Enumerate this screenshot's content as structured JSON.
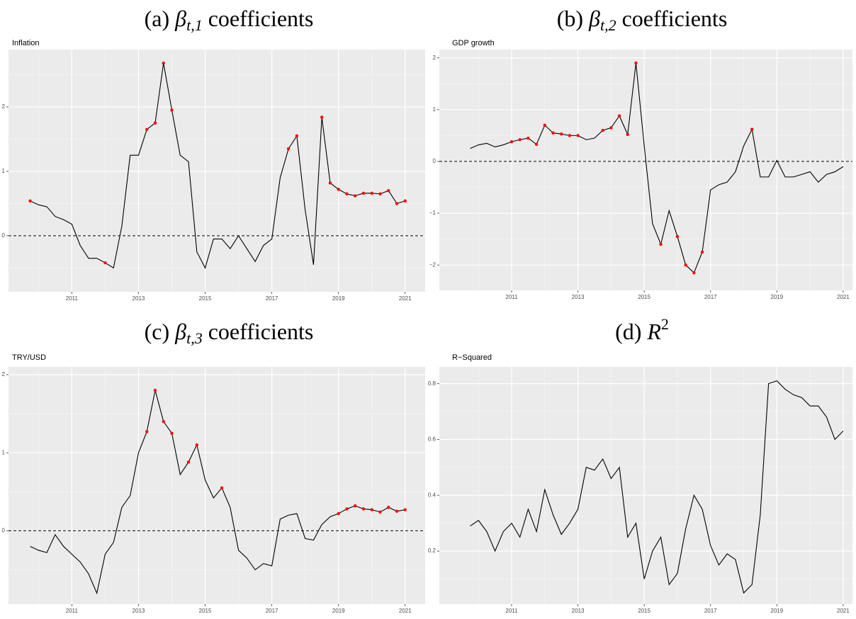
{
  "chart_data": [
    {
      "type": "line",
      "title": "(a)",
      "title_symbol": "β",
      "title_subscript": "t,1",
      "title_suffix": "coefficients",
      "subtitle": "Inflation",
      "x": [
        2009.75,
        2010,
        2010.25,
        2010.5,
        2010.75,
        2011,
        2011.25,
        2011.5,
        2011.75,
        2012,
        2012.25,
        2012.5,
        2012.75,
        2013,
        2013.25,
        2013.5,
        2013.75,
        2014,
        2014.25,
        2014.5,
        2014.75,
        2015,
        2015.25,
        2015.5,
        2015.75,
        2016,
        2016.25,
        2016.5,
        2016.75,
        2017,
        2017.25,
        2017.5,
        2017.75,
        2018,
        2018.25,
        2018.5,
        2018.75,
        2019,
        2019.25,
        2019.5,
        2019.75,
        2020,
        2020.25,
        2020.5,
        2020.75,
        2021
      ],
      "series": [
        {
          "color": "#000000",
          "values": [
            0.54,
            0.48,
            0.45,
            0.3,
            0.25,
            0.18,
            -0.15,
            -0.35,
            -0.35,
            -0.42,
            -0.5,
            0.15,
            1.25,
            1.25,
            1.65,
            1.75,
            2.68,
            1.95,
            1.25,
            1.15,
            -0.25,
            -0.5,
            -0.05,
            -0.05,
            -0.2,
            0.0,
            -0.2,
            -0.4,
            -0.15,
            -0.05,
            0.9,
            1.35,
            1.55,
            0.4,
            -0.45,
            1.84,
            0.82,
            0.72,
            0.65,
            0.62,
            0.66,
            0.66,
            0.65,
            0.7,
            0.5,
            0.54
          ]
        }
      ],
      "highlight": {
        "color": "#ff0000",
        "values": [
          0.54,
          null,
          null,
          null,
          null,
          null,
          null,
          null,
          null,
          -0.42,
          null,
          null,
          null,
          null,
          1.65,
          1.75,
          2.68,
          1.95,
          null,
          null,
          null,
          null,
          null,
          null,
          null,
          null,
          null,
          null,
          null,
          null,
          null,
          1.35,
          1.55,
          null,
          null,
          1.84,
          0.82,
          0.72,
          0.65,
          0.62,
          0.66,
          0.66,
          0.65,
          0.7,
          0.5,
          0.54
        ]
      },
      "xlim": [
        2009.1,
        2021.6
      ],
      "xticks": [
        2011,
        2013,
        2015,
        2017,
        2019,
        2021
      ],
      "xminorticks": [
        2010,
        2012,
        2014,
        2016,
        2018,
        2020
      ],
      "ylim": [
        -0.87,
        2.89
      ],
      "yticks": [
        0,
        1,
        2
      ],
      "yminorticks": [
        -0.5,
        0.5,
        1.5,
        2.5
      ],
      "hline": 0,
      "grid": true
    },
    {
      "type": "line",
      "title": "(b)",
      "title_symbol": "β",
      "title_subscript": "t,2",
      "title_suffix": "coefficients",
      "subtitle": "GDP growth",
      "x": [
        2009.75,
        2010,
        2010.25,
        2010.5,
        2010.75,
        2011,
        2011.25,
        2011.5,
        2011.75,
        2012,
        2012.25,
        2012.5,
        2012.75,
        2013,
        2013.25,
        2013.5,
        2013.75,
        2014,
        2014.25,
        2014.5,
        2014.75,
        2015,
        2015.25,
        2015.5,
        2015.75,
        2016,
        2016.25,
        2016.5,
        2016.75,
        2017,
        2017.25,
        2017.5,
        2017.75,
        2018,
        2018.25,
        2018.5,
        2018.75,
        2019,
        2019.25,
        2019.5,
        2019.75,
        2020,
        2020.25,
        2020.5,
        2020.75,
        2021
      ],
      "series": [
        {
          "color": "#000000",
          "values": [
            0.25,
            0.32,
            0.35,
            0.28,
            0.32,
            0.38,
            0.42,
            0.45,
            0.33,
            0.7,
            0.55,
            0.53,
            0.5,
            0.5,
            0.42,
            0.45,
            0.6,
            0.65,
            0.88,
            0.52,
            1.9,
            0.3,
            -1.2,
            -1.6,
            -0.95,
            -1.45,
            -2.0,
            -2.15,
            -1.75,
            -0.55,
            -0.45,
            -0.4,
            -0.2,
            0.3,
            0.62,
            -0.3,
            -0.3,
            0.02,
            -0.3,
            -0.3,
            -0.25,
            -0.2,
            -0.4,
            -0.25,
            -0.2,
            -0.1
          ]
        }
      ],
      "highlight": {
        "color": "#ff0000",
        "values": [
          null,
          null,
          null,
          null,
          null,
          0.38,
          0.42,
          0.45,
          0.33,
          0.7,
          0.55,
          0.53,
          0.5,
          0.5,
          null,
          null,
          0.6,
          0.65,
          0.88,
          0.52,
          1.9,
          null,
          null,
          -1.6,
          null,
          -1.45,
          -2.0,
          -2.15,
          -1.75,
          null,
          null,
          null,
          null,
          null,
          0.62,
          null,
          null,
          null,
          null,
          null,
          null,
          null,
          null,
          null,
          null,
          null
        ]
      },
      "xlim": [
        2008.82,
        2021.28
      ],
      "xticks": [
        2011,
        2013,
        2015,
        2017,
        2019,
        2021
      ],
      "xminorticks": [
        2010,
        2012,
        2014,
        2016,
        2018,
        2020
      ],
      "ylim": [
        -2.49,
        2.16
      ],
      "yticks": [
        {
          "value": -2,
          "label": "−2"
        },
        {
          "value": -1,
          "label": "−1"
        },
        0,
        1,
        2
      ],
      "yminorticks": [
        -1.5,
        -0.5,
        0.5,
        1.5
      ],
      "hline": 0,
      "grid": true
    },
    {
      "type": "line",
      "title": "(c)",
      "title_symbol": "β",
      "title_subscript": "t,3",
      "title_suffix": "coefficients",
      "subtitle": "TRY/USD",
      "x": [
        2009.75,
        2010,
        2010.25,
        2010.5,
        2010.75,
        2011,
        2011.25,
        2011.5,
        2011.75,
        2012,
        2012.25,
        2012.5,
        2012.75,
        2013,
        2013.25,
        2013.5,
        2013.75,
        2014,
        2014.25,
        2014.5,
        2014.75,
        2015,
        2015.25,
        2015.5,
        2015.75,
        2016,
        2016.25,
        2016.5,
        2016.75,
        2017,
        2017.25,
        2017.5,
        2017.75,
        2018,
        2018.25,
        2018.5,
        2018.75,
        2019,
        2019.25,
        2019.5,
        2019.75,
        2020,
        2020.25,
        2020.5,
        2020.75,
        2021
      ],
      "series": [
        {
          "color": "#000000",
          "values": [
            -0.2,
            -0.25,
            -0.28,
            -0.05,
            -0.2,
            -0.3,
            -0.4,
            -0.55,
            -0.8,
            -0.3,
            -0.15,
            0.3,
            0.45,
            1.0,
            1.27,
            1.8,
            1.4,
            1.25,
            0.72,
            0.88,
            1.1,
            0.65,
            0.42,
            0.55,
            0.3,
            -0.25,
            -0.35,
            -0.5,
            -0.42,
            -0.45,
            0.15,
            0.2,
            0.22,
            -0.1,
            -0.12,
            0.08,
            0.18,
            0.22,
            0.28,
            0.32,
            0.28,
            0.27,
            0.24,
            0.3,
            0.25,
            0.27
          ]
        }
      ],
      "highlight": {
        "color": "#ff0000",
        "values": [
          null,
          null,
          null,
          null,
          null,
          null,
          null,
          null,
          null,
          null,
          null,
          null,
          null,
          null,
          1.27,
          1.8,
          1.4,
          1.25,
          null,
          0.88,
          1.1,
          null,
          null,
          0.55,
          null,
          null,
          null,
          null,
          null,
          null,
          null,
          null,
          null,
          null,
          null,
          null,
          null,
          0.22,
          0.28,
          0.32,
          0.28,
          0.27,
          0.24,
          0.3,
          0.25,
          0.27
        ]
      },
      "xlim": [
        2009.1,
        2021.6
      ],
      "xticks": [
        2011,
        2013,
        2015,
        2017,
        2019,
        2021
      ],
      "xminorticks": [
        2010,
        2012,
        2014,
        2016,
        2018,
        2020
      ],
      "ylim": [
        -0.94,
        2.1
      ],
      "yticks": [
        0,
        1,
        2
      ],
      "yminorticks": [
        -0.5,
        0.5,
        1.5
      ],
      "hline": 0,
      "grid": true
    },
    {
      "type": "line",
      "title": "(d)",
      "title_symbol": "R",
      "title_superscript": "2",
      "subtitle": "R−Squared",
      "x": [
        2009.75,
        2010,
        2010.25,
        2010.5,
        2010.75,
        2011,
        2011.25,
        2011.5,
        2011.75,
        2012,
        2012.25,
        2012.5,
        2012.75,
        2013,
        2013.25,
        2013.5,
        2013.75,
        2014,
        2014.25,
        2014.5,
        2014.75,
        2015,
        2015.25,
        2015.5,
        2015.75,
        2016,
        2016.25,
        2016.5,
        2016.75,
        2017,
        2017.25,
        2017.5,
        2017.75,
        2018,
        2018.25,
        2018.5,
        2018.75,
        2019,
        2019.25,
        2019.5,
        2019.75,
        2020,
        2020.25,
        2020.5,
        2020.75,
        2021
      ],
      "series": [
        {
          "color": "#000000",
          "values": [
            0.29,
            0.31,
            0.27,
            0.2,
            0.27,
            0.3,
            0.25,
            0.35,
            0.27,
            0.42,
            0.33,
            0.26,
            0.3,
            0.35,
            0.5,
            0.49,
            0.53,
            0.46,
            0.5,
            0.25,
            0.3,
            0.1,
            0.2,
            0.25,
            0.08,
            0.12,
            0.28,
            0.4,
            0.35,
            0.22,
            0.15,
            0.19,
            0.17,
            0.05,
            0.08,
            0.33,
            0.8,
            0.81,
            0.78,
            0.76,
            0.75,
            0.72,
            0.72,
            0.68,
            0.6,
            0.63
          ]
        }
      ],
      "xlim": [
        2008.82,
        2021.28
      ],
      "xticks": [
        2011,
        2013,
        2015,
        2017,
        2019,
        2021
      ],
      "xminorticks": [
        2010,
        2012,
        2014,
        2016,
        2018,
        2020
      ],
      "ylim": [
        0.01,
        0.86
      ],
      "yticks": [
        0.2,
        0.4,
        0.6,
        0.8
      ],
      "yminorticks": [
        0.1,
        0.3,
        0.5,
        0.7
      ],
      "grid": true
    }
  ]
}
